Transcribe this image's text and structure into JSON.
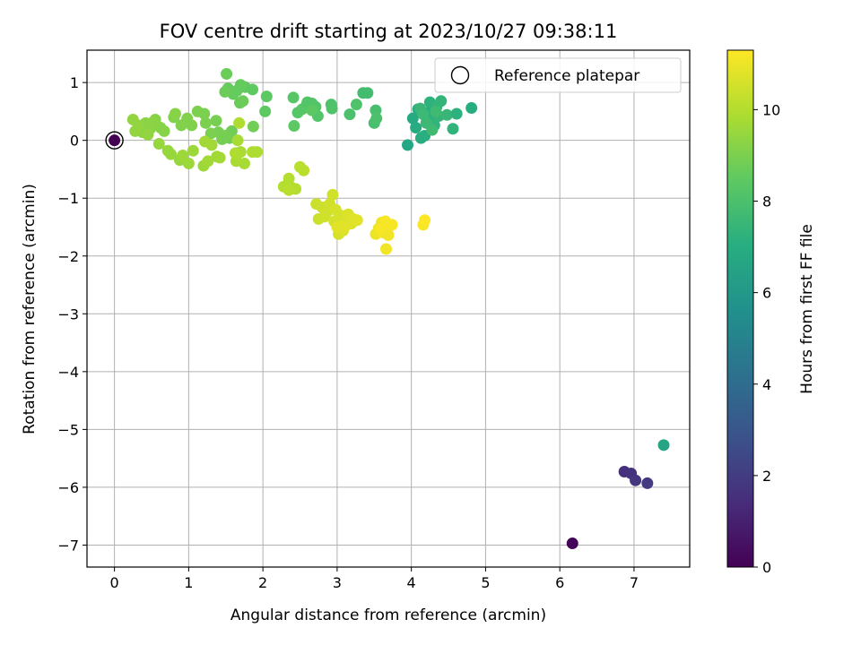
{
  "chart_data": {
    "type": "scatter",
    "title": "FOV centre drift starting at 2023/10/27 09:38:11",
    "xlabel": "Angular distance from reference (arcmin)",
    "ylabel": "Rotation from reference (arcmin)",
    "xlim": [
      -0.37,
      7.75
    ],
    "ylim": [
      -7.38,
      1.56
    ],
    "xticks": [
      0,
      1,
      2,
      3,
      4,
      5,
      6,
      7
    ],
    "yticks": [
      1,
      0,
      -1,
      -2,
      -3,
      -4,
      -5,
      -6,
      -7
    ],
    "xtick_labels": [
      "0",
      "1",
      "2",
      "3",
      "4",
      "5",
      "6",
      "7"
    ],
    "ytick_labels": [
      "1",
      "0",
      "−1",
      "−2",
      "−3",
      "−4",
      "−5",
      "−6",
      "−7"
    ],
    "grid": true,
    "legend": {
      "position": "top-right",
      "entries": [
        "Reference platepar"
      ]
    },
    "colorbar": {
      "label": "Hours from first FF file",
      "colormap": "viridis",
      "range": [
        0,
        11.3
      ],
      "ticks": [
        0,
        2,
        4,
        6,
        8,
        10
      ],
      "tick_labels": [
        "0",
        "2",
        "4",
        "6",
        "8",
        "10"
      ]
    },
    "reference_point": {
      "x": 0,
      "y": 0,
      "hours": 0
    },
    "points": [
      [
        6.17,
        -6.97,
        0.1
      ],
      [
        6.87,
        -5.73,
        1.5
      ],
      [
        6.96,
        -5.76,
        1.6
      ],
      [
        7.02,
        -5.88,
        1.8
      ],
      [
        7.18,
        -5.93,
        1.9
      ],
      [
        7.4,
        -5.27,
        6.6
      ],
      [
        3.95,
        -0.08,
        6.7
      ],
      [
        4.02,
        0.38,
        6.8
      ],
      [
        4.06,
        0.22,
        6.9
      ],
      [
        4.09,
        0.54,
        7.0
      ],
      [
        4.13,
        0.04,
        7.0
      ],
      [
        4.18,
        0.08,
        7.1
      ],
      [
        4.22,
        0.48,
        7.1
      ],
      [
        4.25,
        0.66,
        7.2
      ],
      [
        4.28,
        0.36,
        7.2
      ],
      [
        4.31,
        0.26,
        7.3
      ],
      [
        4.34,
        0.58,
        7.3
      ],
      [
        4.37,
        0.42,
        7.4
      ],
      [
        4.4,
        0.68,
        7.4
      ],
      [
        4.48,
        0.44,
        7.5
      ],
      [
        4.56,
        0.2,
        7.3
      ],
      [
        4.61,
        0.46,
        7.2
      ],
      [
        4.81,
        0.56,
        7.0
      ],
      [
        4.12,
        0.55,
        7.5
      ],
      [
        4.2,
        0.3,
        7.6
      ],
      [
        4.16,
        0.45,
        7.6
      ],
      [
        4.33,
        0.5,
        7.7
      ],
      [
        4.28,
        0.18,
        7.7
      ],
      [
        3.35,
        0.82,
        7.8
      ],
      [
        3.41,
        0.82,
        7.8
      ],
      [
        3.52,
        0.52,
        7.9
      ],
      [
        3.5,
        0.3,
        7.9
      ],
      [
        3.53,
        0.38,
        8.0
      ],
      [
        3.17,
        0.45,
        8.0
      ],
      [
        3.26,
        0.62,
        8.1
      ],
      [
        2.93,
        0.55,
        8.1
      ],
      [
        2.92,
        0.62,
        8.1
      ],
      [
        2.74,
        0.42,
        8.2
      ],
      [
        2.71,
        0.58,
        8.2
      ],
      [
        2.66,
        0.64,
        8.2
      ],
      [
        2.59,
        0.62,
        8.3
      ],
      [
        2.53,
        0.54,
        8.3
      ],
      [
        2.47,
        0.48,
        8.3
      ],
      [
        2.41,
        0.74,
        8.3
      ],
      [
        2.42,
        0.25,
        8.4
      ],
      [
        2.6,
        0.66,
        8.2
      ],
      [
        2.66,
        0.52,
        8.4
      ],
      [
        2.05,
        0.76,
        8.4
      ],
      [
        2.03,
        0.5,
        8.5
      ],
      [
        1.86,
        0.88,
        8.5
      ],
      [
        1.76,
        0.92,
        8.5
      ],
      [
        1.7,
        0.96,
        8.6
      ],
      [
        1.65,
        0.86,
        8.6
      ],
      [
        1.6,
        0.8,
        8.6
      ],
      [
        1.53,
        0.9,
        8.6
      ],
      [
        1.51,
        1.15,
        8.7
      ],
      [
        1.49,
        0.84,
        8.7
      ],
      [
        1.73,
        0.68,
        8.7
      ],
      [
        1.69,
        0.65,
        8.7
      ],
      [
        1.87,
        0.24,
        8.8
      ],
      [
        1.58,
        0.16,
        8.8
      ],
      [
        1.55,
        0.04,
        8.8
      ],
      [
        1.5,
        0.08,
        8.9
      ],
      [
        1.45,
        0.02,
        8.9
      ],
      [
        1.4,
        0.14,
        8.9
      ],
      [
        1.37,
        0.34,
        8.9
      ],
      [
        1.3,
        0.12,
        9.0
      ],
      [
        1.23,
        0.3,
        9.0
      ],
      [
        1.21,
        0.46,
        9.0
      ],
      [
        1.12,
        0.5,
        9.0
      ],
      [
        1.04,
        0.26,
        9.1
      ],
      [
        0.98,
        0.38,
        9.1
      ],
      [
        0.9,
        0.26,
        9.1
      ],
      [
        0.8,
        0.4,
        9.1
      ],
      [
        0.82,
        0.46,
        9.2
      ],
      [
        0.67,
        0.16,
        9.2
      ],
      [
        0.62,
        0.22,
        9.2
      ],
      [
        0.55,
        0.36,
        9.2
      ],
      [
        0.5,
        0.3,
        9.3
      ],
      [
        0.48,
        0.2,
        9.3
      ],
      [
        0.42,
        0.3,
        9.3
      ],
      [
        0.38,
        0.14,
        9.3
      ],
      [
        0.32,
        0.26,
        9.4
      ],
      [
        0.28,
        0.16,
        9.4
      ],
      [
        0.25,
        0.36,
        9.4
      ],
      [
        0.45,
        0.1,
        9.4
      ],
      [
        0.6,
        -0.06,
        9.5
      ],
      [
        0.72,
        -0.18,
        9.5
      ],
      [
        0.76,
        -0.24,
        9.5
      ],
      [
        0.88,
        -0.34,
        9.5
      ],
      [
        0.92,
        -0.26,
        9.6
      ],
      [
        1.0,
        -0.4,
        9.6
      ],
      [
        1.06,
        -0.18,
        9.6
      ],
      [
        1.2,
        -0.44,
        9.6
      ],
      [
        1.26,
        -0.36,
        9.7
      ],
      [
        1.22,
        -0.02,
        9.7
      ],
      [
        1.31,
        -0.08,
        9.7
      ],
      [
        1.38,
        -0.28,
        9.7
      ],
      [
        1.42,
        -0.3,
        9.7
      ],
      [
        1.66,
        0.0,
        9.8
      ],
      [
        1.64,
        -0.36,
        9.8
      ],
      [
        1.75,
        -0.4,
        9.8
      ],
      [
        1.7,
        -0.2,
        9.8
      ],
      [
        1.63,
        -0.22,
        9.9
      ],
      [
        1.86,
        -0.2,
        9.9
      ],
      [
        1.92,
        -0.2,
        9.9
      ],
      [
        1.68,
        0.3,
        9.9
      ],
      [
        2.28,
        -0.8,
        10.0
      ],
      [
        2.35,
        -0.66,
        10.0
      ],
      [
        2.39,
        -0.82,
        10.0
      ],
      [
        2.44,
        -0.84,
        10.0
      ],
      [
        2.5,
        -0.46,
        10.1
      ],
      [
        2.55,
        -0.52,
        10.1
      ],
      [
        2.35,
        -0.86,
        10.1
      ],
      [
        2.72,
        -1.1,
        10.4
      ],
      [
        2.75,
        -1.36,
        10.4
      ],
      [
        2.8,
        -1.16,
        10.4
      ],
      [
        2.83,
        -1.32,
        10.5
      ],
      [
        2.86,
        -1.24,
        10.5
      ],
      [
        2.9,
        -1.1,
        10.5
      ],
      [
        2.94,
        -0.94,
        10.5
      ],
      [
        2.96,
        -1.4,
        10.6
      ],
      [
        2.98,
        -1.2,
        10.6
      ],
      [
        3.02,
        -1.62,
        10.6
      ],
      [
        3.05,
        -1.3,
        10.6
      ],
      [
        3.08,
        -1.56,
        10.7
      ],
      [
        3.12,
        -1.4,
        10.7
      ],
      [
        3.15,
        -1.28,
        10.7
      ],
      [
        3.19,
        -1.44,
        10.7
      ],
      [
        3.22,
        -1.36,
        10.8
      ],
      [
        3.27,
        -1.38,
        10.8
      ],
      [
        3.0,
        -1.5,
        10.8
      ],
      [
        3.1,
        -1.5,
        10.8
      ],
      [
        3.52,
        -1.62,
        11.0
      ],
      [
        3.56,
        -1.52,
        11.0
      ],
      [
        3.6,
        -1.42,
        11.0
      ],
      [
        3.63,
        -1.6,
        11.1
      ],
      [
        3.66,
        -1.88,
        11.1
      ],
      [
        3.69,
        -1.64,
        11.1
      ],
      [
        3.71,
        -1.48,
        11.1
      ],
      [
        3.74,
        -1.46,
        11.2
      ],
      [
        3.65,
        -1.4,
        11.2
      ],
      [
        3.58,
        -1.54,
        11.2
      ],
      [
        4.16,
        -1.46,
        11.2
      ],
      [
        4.18,
        -1.38,
        11.3
      ]
    ]
  }
}
